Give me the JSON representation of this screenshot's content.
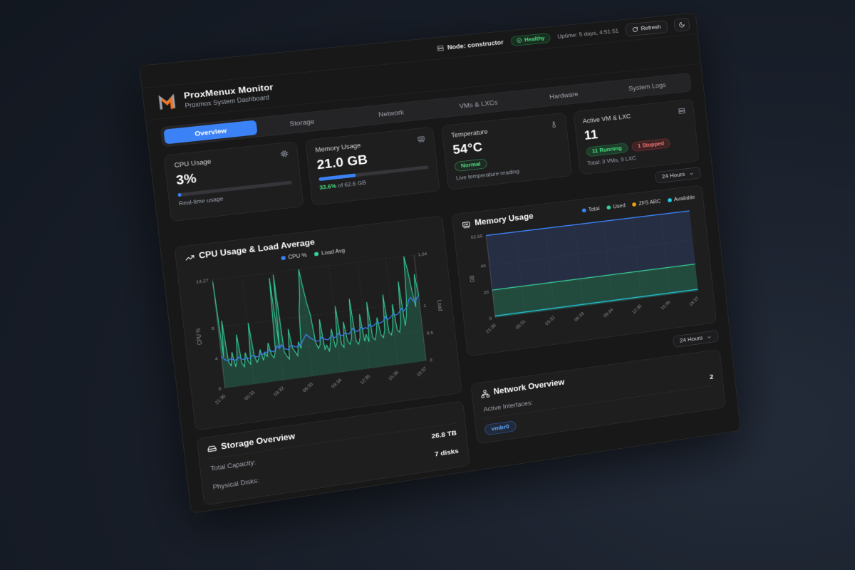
{
  "topbar": {
    "node_label": "Node: constructor",
    "health_label": "Healthy",
    "uptime": "Uptime: 5 days, 4:51:51",
    "refresh_label": "Refresh"
  },
  "header": {
    "title": "ProxMenux Monitor",
    "subtitle": "Proxmox System Dashboard"
  },
  "tabs": [
    {
      "label": "Overview",
      "active": true
    },
    {
      "label": "Storage",
      "active": false
    },
    {
      "label": "Network",
      "active": false
    },
    {
      "label": "VMs & LXCs",
      "active": false
    },
    {
      "label": "Hardware",
      "active": false
    },
    {
      "label": "System Logs",
      "active": false
    }
  ],
  "stats": {
    "cpu": {
      "title": "CPU Usage",
      "value": "3%",
      "percent": 3,
      "caption": "Real-time usage"
    },
    "memory": {
      "title": "Memory Usage",
      "value": "21.0 GB",
      "percent": 33.6,
      "caption_percent": "33.6%",
      "caption_suffix": " of 62.6 GB"
    },
    "temperature": {
      "title": "Temperature",
      "value": "54°C",
      "badge": "Normal",
      "caption": "Live temperature reading"
    },
    "vms": {
      "title": "Active VM & LXC",
      "value": "11",
      "running_badge": "11 Running",
      "stopped_badge": "1 Stopped",
      "caption": "Total: 3 VMs, 9 LXC"
    }
  },
  "range_top": {
    "label": "24 Hours"
  },
  "range_bottom": {
    "label": "24 Hours"
  },
  "chart_data": [
    {
      "id": "cpu_load",
      "type": "line",
      "title": "CPU Usage & Load Average",
      "x_labels": [
        "21:30",
        "00:31",
        "03:32",
        "06:33",
        "09:34",
        "12:35",
        "15:36",
        "18:37"
      ],
      "y_left": {
        "label": "CPU %",
        "ticks": [
          0,
          4,
          8
        ],
        "max": 14.27
      },
      "y_right": {
        "label": "Load",
        "ticks": [
          0,
          0.5,
          1
        ],
        "max": 1.94
      },
      "series": [
        {
          "name": "CPU %",
          "color": "#3b82f6",
          "axis": "left",
          "values": [
            4.2,
            3.8,
            3.6,
            3.5,
            3.7,
            3.6,
            3.4,
            3.6,
            3.8,
            3.5,
            3.4,
            3.6,
            3.5,
            3.4,
            3.8,
            3.7,
            3.5,
            3.6,
            3.9,
            3.7,
            4.0,
            3.9,
            4.2,
            4.0,
            3.9,
            4.1,
            4.6,
            4.2,
            4.7,
            4.2,
            4.0,
            3.9,
            4.3,
            4.4,
            4.2,
            4.1,
            4.4,
            4.3,
            4.8,
            5.2,
            5.6,
            5.3,
            5.0,
            4.8,
            4.6,
            4.5,
            4.6,
            5.0,
            4.7,
            4.6,
            4.5,
            4.8,
            5.0,
            4.7,
            4.8,
            5.2,
            4.9,
            4.8,
            5.1,
            5.0,
            4.9,
            5.2,
            5.6,
            5.2,
            5.1,
            5.3,
            5.6,
            5.3,
            5.5,
            5.3,
            5.8,
            5.5,
            5.6,
            5.8,
            6.0,
            5.8,
            5.9,
            6.1,
            6.6,
            6.2,
            6.3,
            6.6,
            6.8,
            6.6,
            6.7,
            7.0,
            7.4,
            7.0,
            7.3,
            7.6,
            8.4,
            8.7,
            8.2,
            8.0,
            8.6,
            8.8
          ]
        },
        {
          "name": "Load Avg",
          "color": "#34d399",
          "axis": "right",
          "area": true,
          "values": [
            1.9,
            0.55,
            1.2,
            0.45,
            0.38,
            0.62,
            0.35,
            0.48,
            0.92,
            0.4,
            0.33,
            0.58,
            0.42,
            0.36,
            1.1,
            0.5,
            0.38,
            0.45,
            0.6,
            0.4,
            0.52,
            0.46,
            0.7,
            0.48,
            0.42,
            0.55,
            1.85,
            0.6,
            1.9,
            0.5,
            0.42,
            0.36,
            0.9,
            0.55,
            0.48,
            0.4,
            0.65,
            0.52,
            1.2,
            1.45,
            1.94,
            1.6,
            1.3,
            1.1,
            0.6,
            0.48,
            0.55,
            1.0,
            0.45,
            0.52,
            0.4,
            0.58,
            0.8,
            0.46,
            0.55,
            1.2,
            0.5,
            0.44,
            0.9,
            0.55,
            0.48,
            0.6,
            1.3,
            0.52,
            0.46,
            0.58,
            1.0,
            0.5,
            0.62,
            0.48,
            1.2,
            0.55,
            0.5,
            0.64,
            0.9,
            0.58,
            0.52,
            0.66,
            1.3,
            0.6,
            0.55,
            0.7,
            1.1,
            0.62,
            0.58,
            0.75,
            1.5,
            0.68,
            0.85,
            1.2,
            1.94,
            1.7,
            1.3,
            1.0,
            1.6,
            1.2
          ]
        }
      ]
    },
    {
      "id": "memory",
      "type": "area",
      "title": "Memory Usage",
      "x_labels": [
        "21:30",
        "00:31",
        "03:32",
        "06:33",
        "09:34",
        "12:35",
        "15:36",
        "18:37"
      ],
      "y": {
        "label": "GB",
        "ticks": [
          0,
          20,
          40
        ],
        "max": 62.56
      },
      "series": [
        {
          "name": "Total",
          "color": "#3b82f6",
          "value": 62.56
        },
        {
          "name": "Used",
          "color": "#34d399",
          "value": 21.0
        },
        {
          "name": "ZFS ARC",
          "color": "#f59e0b"
        },
        {
          "name": "Available",
          "color": "#22d3ee",
          "value": 1.3
        }
      ]
    }
  ],
  "storage": {
    "title": "Storage Overview",
    "rows": [
      {
        "label": "Total Capacity:",
        "value": "26.8 TB"
      },
      {
        "label": "Physical Disks:",
        "value": "7 disks"
      }
    ]
  },
  "network": {
    "title": "Network Overview",
    "rows": [
      {
        "label": "Active Interfaces:",
        "value": "2"
      }
    ],
    "interfaces": [
      {
        "label": "vmbr0"
      }
    ]
  },
  "colors": {
    "accent_blue": "#3b82f6",
    "green": "#22c55e",
    "red": "#ef4444",
    "orange": "#f59e0b",
    "cyan": "#22d3ee",
    "logo_orange": "#f97316"
  }
}
